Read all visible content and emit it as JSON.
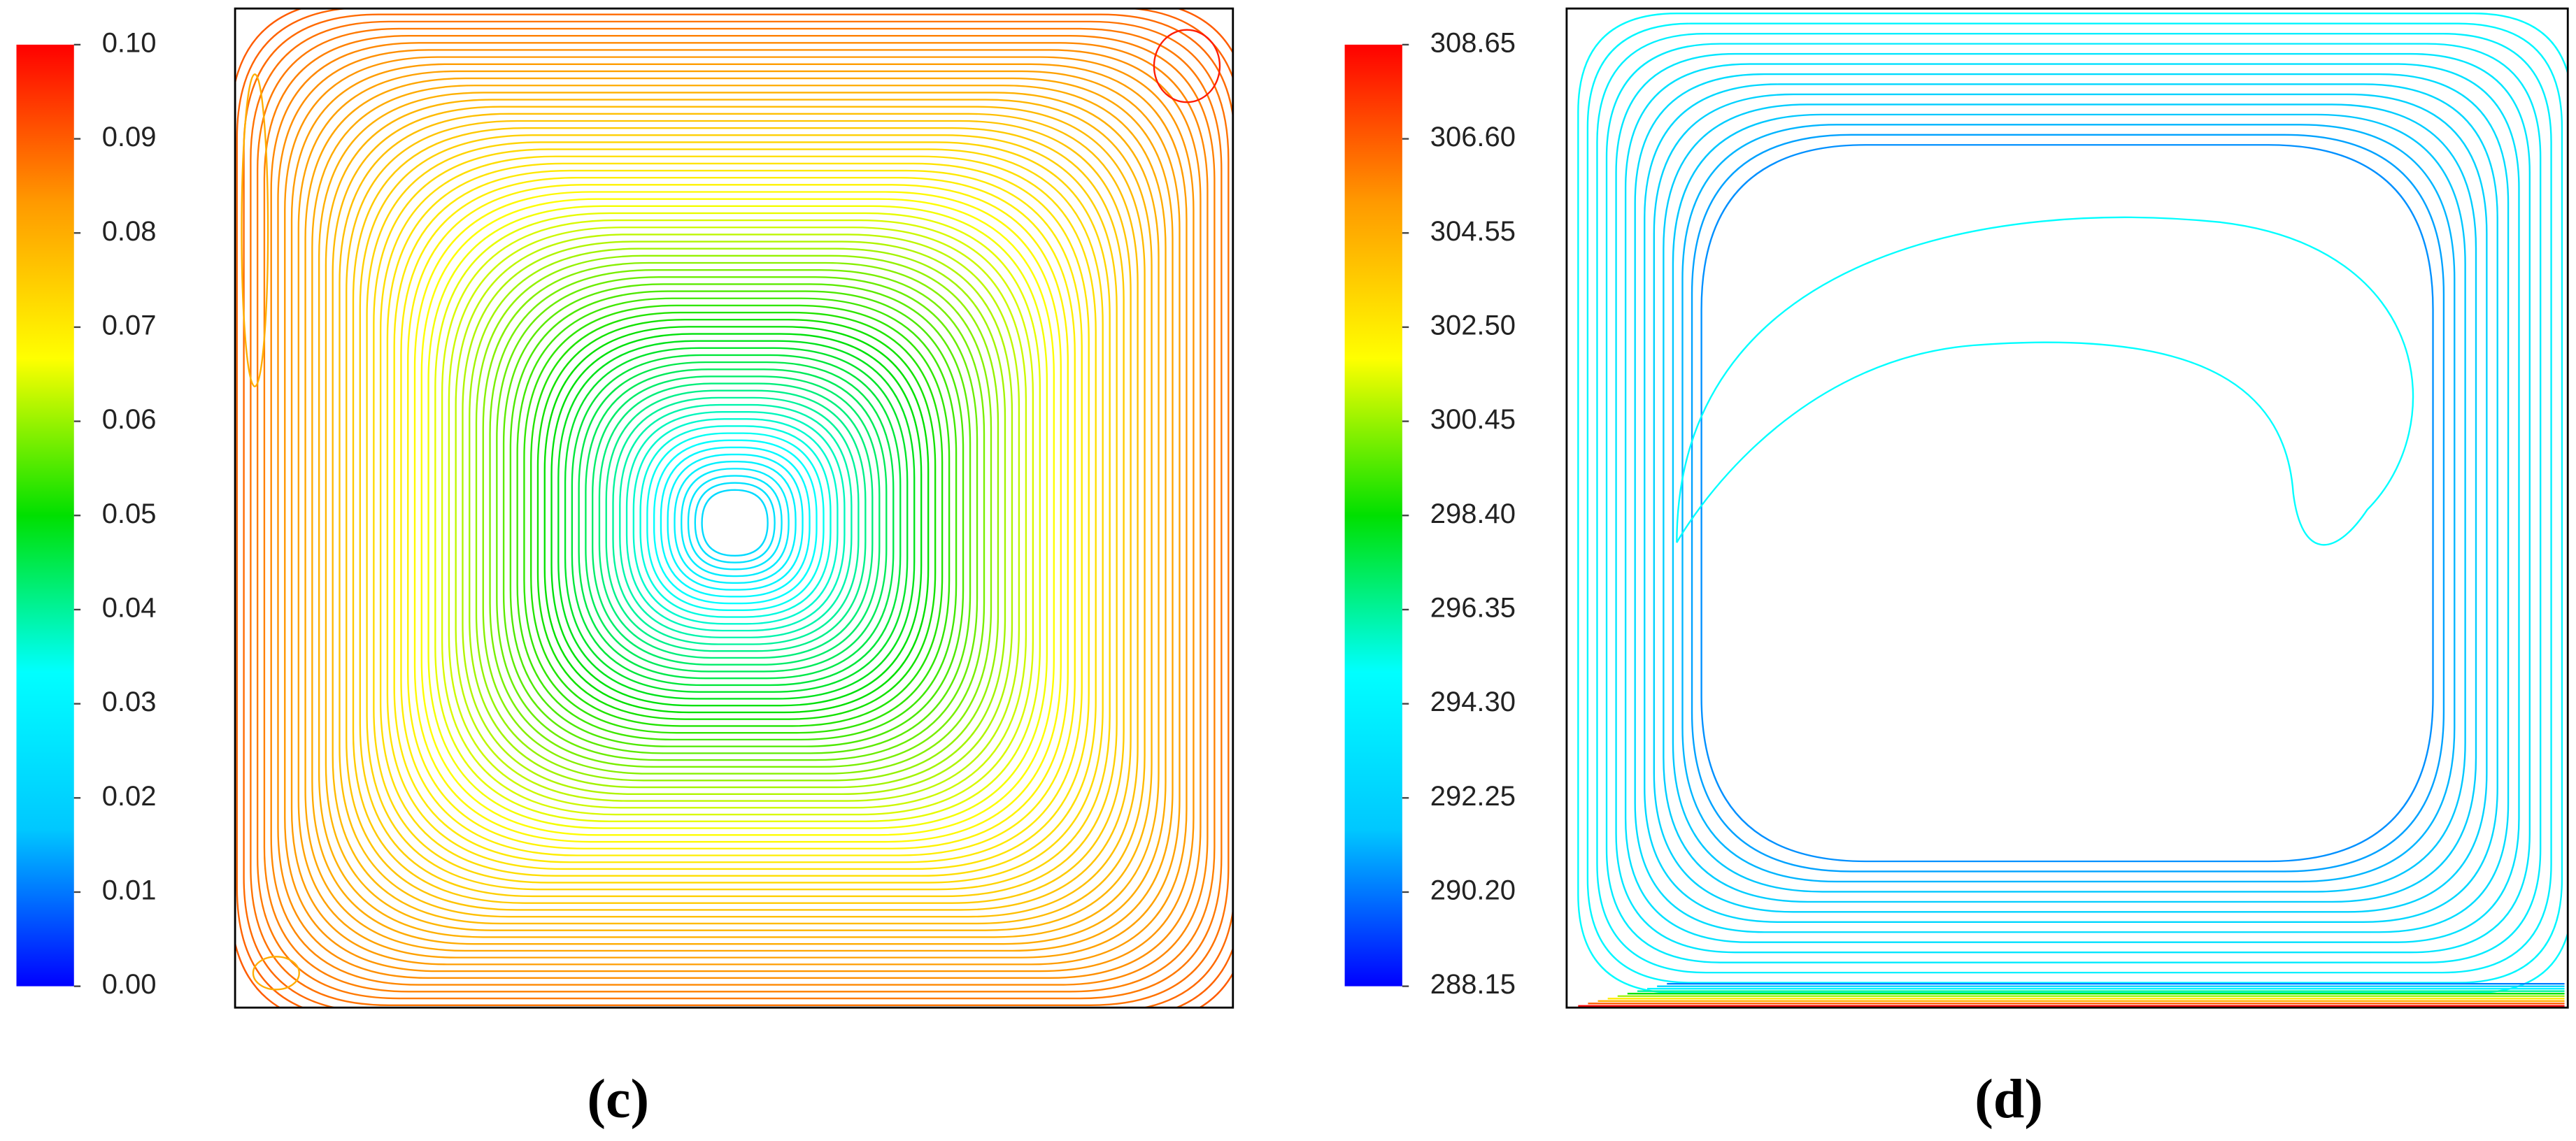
{
  "chart_data": [
    {
      "type": "contour",
      "label": "(c)",
      "clim": [
        0,
        0.1
      ],
      "cticks": [
        {
          "value": 0,
          "label": "0.00"
        },
        0.01,
        0.02,
        0.03,
        0.04,
        0.05,
        0.06,
        0.07,
        0.08,
        0.09,
        {
          "value": 0.1,
          "label": "0.10"
        }
      ],
      "colormap": [
        "#0000ff",
        "#00c8ff",
        "#00ffff",
        "#00e000",
        "#ffff00",
        "#ff9900",
        "#ff0000"
      ]
    },
    {
      "type": "contour",
      "label": "(d)",
      "clim": [
        288.15,
        308.65
      ],
      "cticks": [
        288.15,
        {
          "value": 290.2,
          "label": "290.20"
        },
        292.25,
        {
          "value": 294.3,
          "label": "294.30"
        },
        296.35,
        {
          "value": 298.4,
          "label": "298.40"
        },
        300.45,
        {
          "value": 302.5,
          "label": "302.50"
        },
        304.55,
        {
          "value": 306.6,
          "label": "306.60"
        },
        308.65
      ],
      "colormap": [
        "#0000ff",
        "#00c8ff",
        "#00ffff",
        "#00e000",
        "#ffff00",
        "#ff9900",
        "#ff0000"
      ]
    }
  ]
}
